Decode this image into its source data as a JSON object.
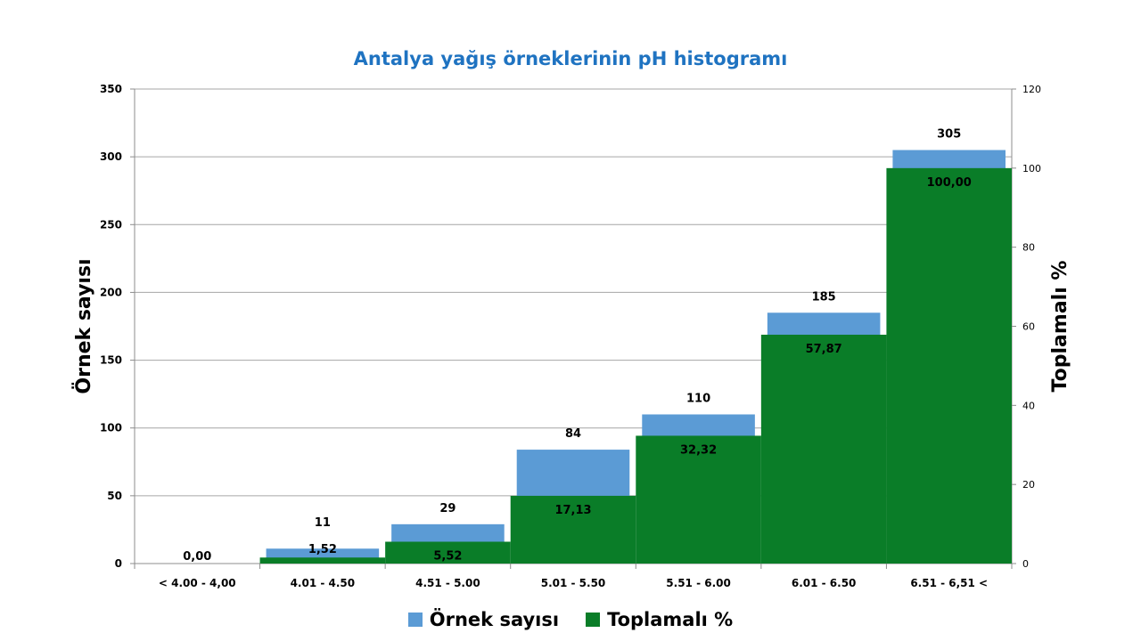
{
  "chart_data": {
    "type": "bar",
    "title": "Antalya yağış örneklerinin pH histogramı",
    "ylabel": "Örnek sayısı",
    "y2label": "Toplamalı %",
    "categories": [
      "< 4.00 - 4,00",
      "4.01 - 4.50",
      "4.51 - 5.00",
      "5.01 - 5.50",
      "5.51 - 6.00",
      "6.01 - 6.50",
      "6.51 - 6,51 <"
    ],
    "series": [
      {
        "name": "Örnek sayısı",
        "axis": "left",
        "color": "#5b9bd5",
        "values": [
          0,
          11,
          29,
          84,
          110,
          185,
          305
        ],
        "labels": [
          "",
          "11",
          "29",
          "84",
          "110",
          "185",
          "305"
        ]
      },
      {
        "name": "Toplamalı %",
        "axis": "right",
        "color": "#0a7d28",
        "values": [
          0,
          1.52,
          5.52,
          17.13,
          32.32,
          57.87,
          100.0
        ],
        "labels": [
          "0,00",
          "1,52",
          "5,52",
          "17,13",
          "32,32",
          "57,87",
          "100,00"
        ]
      }
    ],
    "ylim": [
      0,
      350
    ],
    "yticks": [
      "0",
      "50",
      "100",
      "150",
      "200",
      "250",
      "300",
      "350"
    ],
    "y2lim": [
      0,
      120
    ],
    "y2ticks": [
      "0",
      "20",
      "40",
      "60",
      "80",
      "100",
      "120"
    ],
    "grid": true,
    "legend_position": "bottom"
  }
}
